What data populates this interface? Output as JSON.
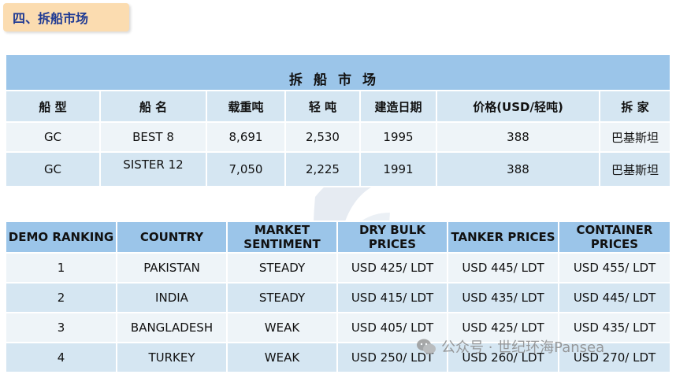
{
  "section_title": "四、拆船市场",
  "scrap_table": {
    "caption": "拆船市场",
    "headers": [
      "船 型",
      "船 名",
      "载重吨",
      "轻 吨",
      "建造日期",
      "价格(USD/轻吨)",
      "拆 家"
    ],
    "rows": [
      [
        "GC",
        "BEST 8",
        "8,691",
        "2,530",
        "1995",
        "388",
        "巴基斯坦"
      ],
      [
        "GC",
        "SISTER 12",
        "7,050",
        "2,225",
        "1991",
        "388",
        "巴基斯坦"
      ]
    ]
  },
  "ranking_table": {
    "headers": [
      "DEMO RANKING",
      "COUNTRY",
      "MARKET SENTIMENT",
      "DRY BULK PRICES",
      "TANKER PRICES",
      "CONTAINER PRICES"
    ],
    "rows": [
      [
        "1",
        "PAKISTAN",
        "STEADY",
        "USD 425/ LDT",
        "USD 445/ LDT",
        "USD 455/ LDT"
      ],
      [
        "2",
        "INDIA",
        "STEADY",
        "USD 415/ LDT",
        "USD 435/ LDT",
        "USD 445/ LDT"
      ],
      [
        "3",
        "BANGLADESH",
        "WEAK",
        "USD 405/ LDT",
        "USD 425/ LDT",
        "USD 435/ LDT"
      ],
      [
        "4",
        "TURKEY",
        "WEAK",
        "USD 250/ LDT",
        "USD 260/ LDT",
        "USD 270/ LDT"
      ]
    ]
  },
  "footer": {
    "watermark": "公众号 · 世纪环海Pansea",
    "icon": "wechat-icon"
  }
}
